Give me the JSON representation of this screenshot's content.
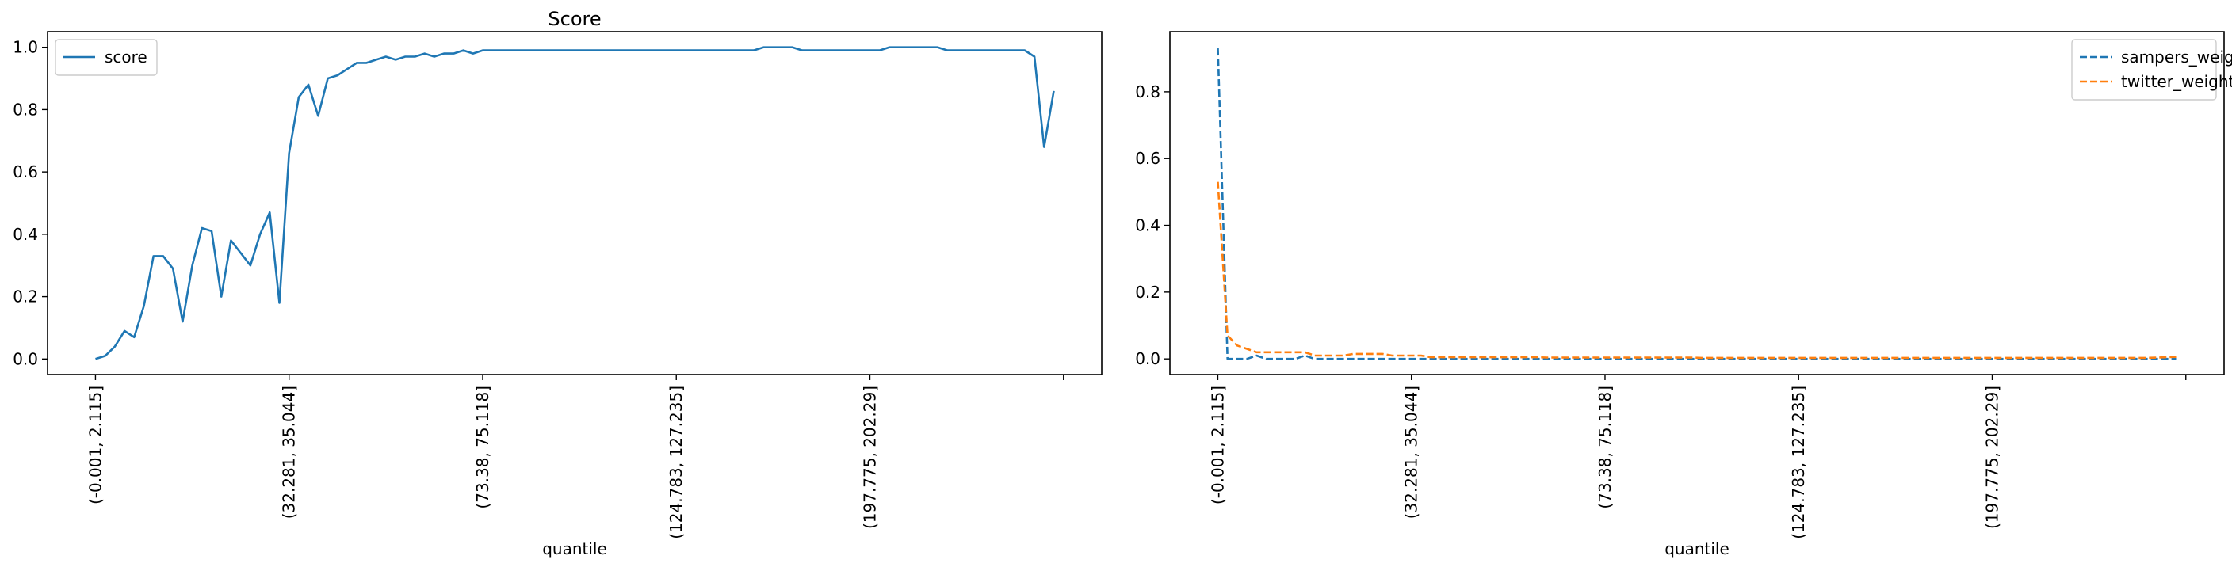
{
  "chart_data": [
    {
      "type": "line",
      "title": "Score",
      "xlabel": "quantile",
      "ylabel": "",
      "xtick_labels": [
        "(-0.001, 2.115]",
        "(32.281, 35.044]",
        "(73.38, 75.118]",
        "(124.783, 127.235]",
        "(197.775, 202.29]",
        ""
      ],
      "xtick_positions": [
        0,
        20,
        40,
        60,
        80,
        100
      ],
      "xlim": [
        -4.95,
        103.95
      ],
      "ylim": [
        -0.05,
        1.05
      ],
      "yticks": [
        0.0,
        0.2,
        0.4,
        0.6,
        0.8,
        1.0
      ],
      "ytick_labels": [
        "0.0",
        "0.2",
        "0.4",
        "0.6",
        "0.8",
        "1.0"
      ],
      "legend_position": "top-left",
      "series": [
        {
          "name": "score",
          "color": "#1f77b4",
          "style": "solid",
          "values": [
            0.0,
            0.01,
            0.04,
            0.09,
            0.07,
            0.17,
            0.33,
            0.33,
            0.29,
            0.12,
            0.3,
            0.42,
            0.41,
            0.2,
            0.38,
            0.34,
            0.3,
            0.4,
            0.47,
            0.18,
            0.66,
            0.84,
            0.88,
            0.78,
            0.9,
            0.91,
            0.93,
            0.95,
            0.95,
            0.96,
            0.97,
            0.96,
            0.97,
            0.97,
            0.98,
            0.97,
            0.98,
            0.98,
            0.99,
            0.98,
            0.99,
            0.99,
            0.99,
            0.99,
            0.99,
            0.99,
            0.99,
            0.99,
            0.99,
            0.99,
            0.99,
            0.99,
            0.99,
            0.99,
            0.99,
            0.99,
            0.99,
            0.99,
            0.99,
            0.99,
            0.99,
            0.99,
            0.99,
            0.99,
            0.99,
            0.99,
            0.99,
            0.99,
            0.99,
            1.0,
            1.0,
            1.0,
            1.0,
            0.99,
            0.99,
            0.99,
            0.99,
            0.99,
            0.99,
            0.99,
            0.99,
            0.99,
            1.0,
            1.0,
            1.0,
            1.0,
            1.0,
            1.0,
            0.99,
            0.99,
            0.99,
            0.99,
            0.99,
            0.99,
            0.99,
            0.99,
            0.99,
            0.97,
            0.68,
            0.86
          ]
        }
      ]
    },
    {
      "type": "line",
      "title": "",
      "xlabel": "quantile",
      "ylabel": "",
      "xtick_labels": [
        "(-0.001, 2.115]",
        "(32.281, 35.044]",
        "(73.38, 75.118]",
        "(124.783, 127.235]",
        "(197.775, 202.29]",
        ""
      ],
      "xtick_positions": [
        0,
        20,
        40,
        60,
        80,
        100
      ],
      "xlim": [
        -4.95,
        103.95
      ],
      "ylim": [
        -0.047,
        0.98
      ],
      "yticks": [
        0.0,
        0.2,
        0.4,
        0.6,
        0.8
      ],
      "ytick_labels": [
        "0.0",
        "0.2",
        "0.4",
        "0.6",
        "0.8"
      ],
      "legend_position": "top-right",
      "series": [
        {
          "name": "sampers_weight",
          "color": "#1f77b4",
          "style": "dashed",
          "values": [
            0.93,
            0.0,
            0.0,
            0.0,
            0.01,
            0.0,
            0.0,
            0.0,
            0.0,
            0.01,
            0.0,
            0.0,
            0.0,
            0.0,
            0.0,
            0.0,
            0.0,
            0.0,
            0.0,
            0.0,
            0.0,
            0.0,
            0.0,
            0.0,
            0.0,
            0.0,
            0.0,
            0.0,
            0.0,
            0.0,
            0.0,
            0.0,
            0.0,
            0.0,
            0.0,
            0.0,
            0.0,
            0.0,
            0.0,
            0.0,
            0.0,
            0.0,
            0.0,
            0.0,
            0.0,
            0.0,
            0.0,
            0.0,
            0.0,
            0.0,
            0.0,
            0.0,
            0.0,
            0.0,
            0.0,
            0.0,
            0.0,
            0.0,
            0.0,
            0.0,
            0.0,
            0.0,
            0.0,
            0.0,
            0.0,
            0.0,
            0.0,
            0.0,
            0.0,
            0.0,
            0.0,
            0.0,
            0.0,
            0.0,
            0.0,
            0.0,
            0.0,
            0.0,
            0.0,
            0.0,
            0.0,
            0.0,
            0.0,
            0.0,
            0.0,
            0.0,
            0.0,
            0.0,
            0.0,
            0.0,
            0.0,
            0.0,
            0.0,
            0.0,
            0.0,
            0.0,
            0.0,
            0.0,
            0.0,
            0.0
          ]
        },
        {
          "name": "twitter_weight",
          "color": "#ff7f0e",
          "style": "dashed",
          "values": [
            0.53,
            0.07,
            0.04,
            0.03,
            0.02,
            0.02,
            0.02,
            0.02,
            0.02,
            0.02,
            0.01,
            0.01,
            0.01,
            0.01,
            0.015,
            0.015,
            0.015,
            0.015,
            0.01,
            0.01,
            0.01,
            0.01,
            0.005,
            0.005,
            0.005,
            0.005,
            0.005,
            0.005,
            0.005,
            0.005,
            0.005,
            0.005,
            0.005,
            0.005,
            0.004,
            0.004,
            0.004,
            0.004,
            0.004,
            0.004,
            0.004,
            0.004,
            0.004,
            0.004,
            0.004,
            0.004,
            0.004,
            0.004,
            0.004,
            0.004,
            0.003,
            0.003,
            0.003,
            0.003,
            0.003,
            0.003,
            0.003,
            0.003,
            0.003,
            0.003,
            0.003,
            0.003,
            0.003,
            0.003,
            0.003,
            0.003,
            0.003,
            0.003,
            0.003,
            0.003,
            0.003,
            0.003,
            0.003,
            0.003,
            0.003,
            0.003,
            0.003,
            0.003,
            0.003,
            0.003,
            0.003,
            0.003,
            0.003,
            0.003,
            0.003,
            0.003,
            0.003,
            0.003,
            0.003,
            0.003,
            0.003,
            0.003,
            0.003,
            0.003,
            0.003,
            0.003,
            0.003,
            0.004,
            0.005,
            0.006
          ]
        }
      ]
    }
  ]
}
